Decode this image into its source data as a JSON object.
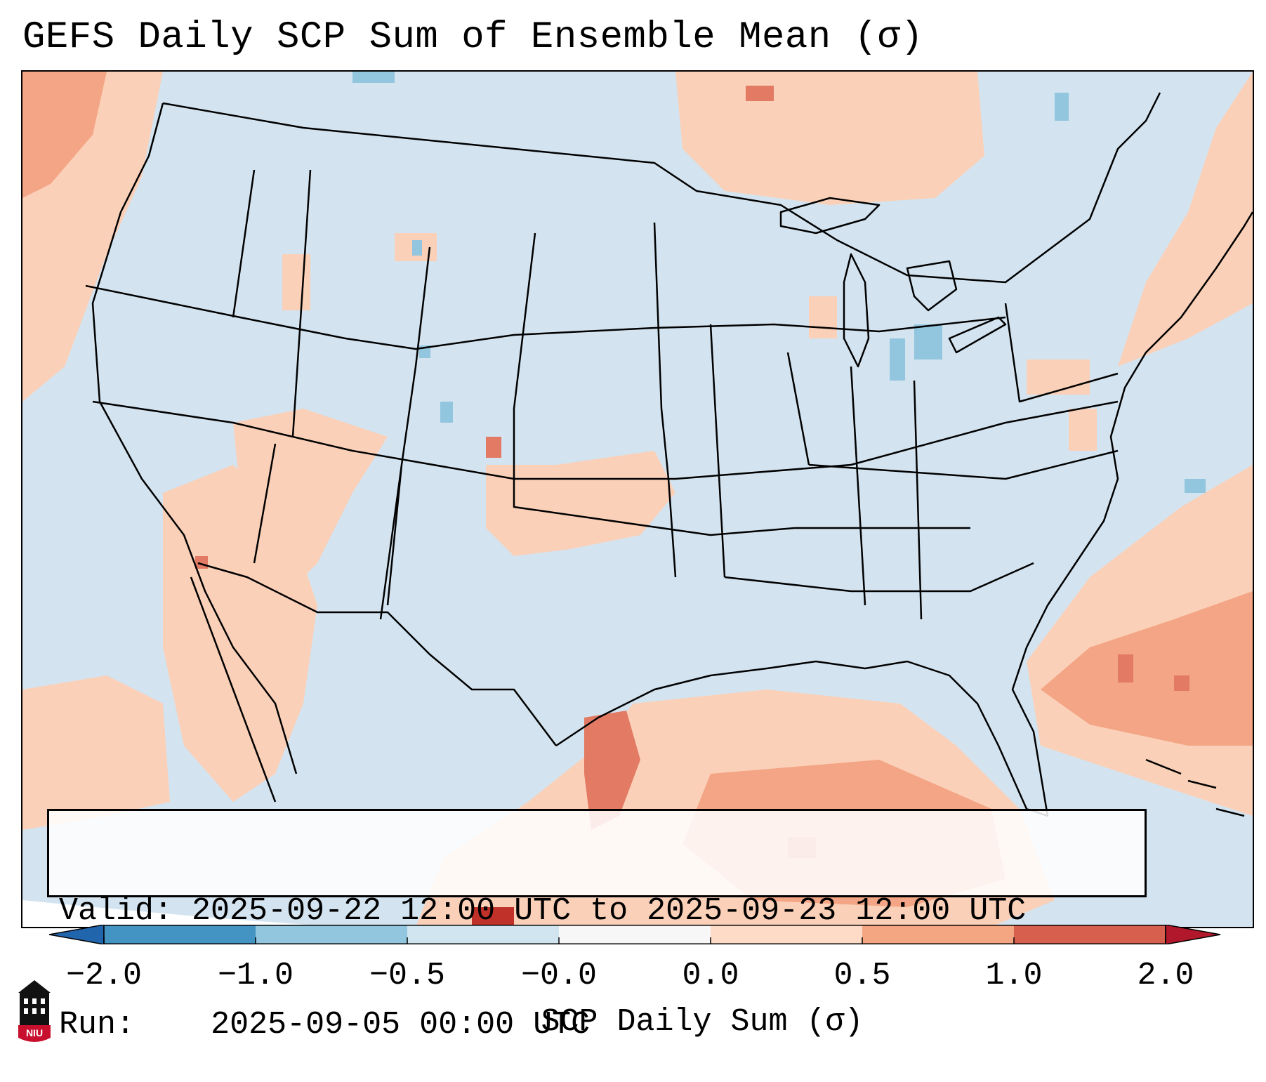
{
  "title": "GEFS Daily SCP Sum of Ensemble Mean (σ)",
  "map": {
    "region": "Contiguous United States",
    "field": "SCP daily sum, ensemble mean",
    "base_color": "#d3e4f0",
    "land_outline_color": "#000000"
  },
  "info_box": {
    "valid_label": "Valid:",
    "valid_value": "2025-09-22 12:00 UTC to 2025-09-23 12:00 UTC",
    "run_label": "Run:",
    "run_value": "2025-09-05 00:00 UTC"
  },
  "colorbar": {
    "ticks": [
      "−2.0",
      "−1.0",
      "−0.5",
      "−0.0",
      "0.0",
      "0.5",
      "1.0",
      "2.0"
    ],
    "colors": [
      "#2166ac",
      "#4393c3",
      "#92c5de",
      "#d1e5f0",
      "#f7f7f7",
      "#fddbc7",
      "#f4a582",
      "#d6604d",
      "#b2182b"
    ],
    "label": "SCP Daily Sum (σ)",
    "extend": "both"
  },
  "logo": {
    "text": "NIU",
    "icon": "university-tower-logo-icon",
    "color": "#c8102e"
  }
}
